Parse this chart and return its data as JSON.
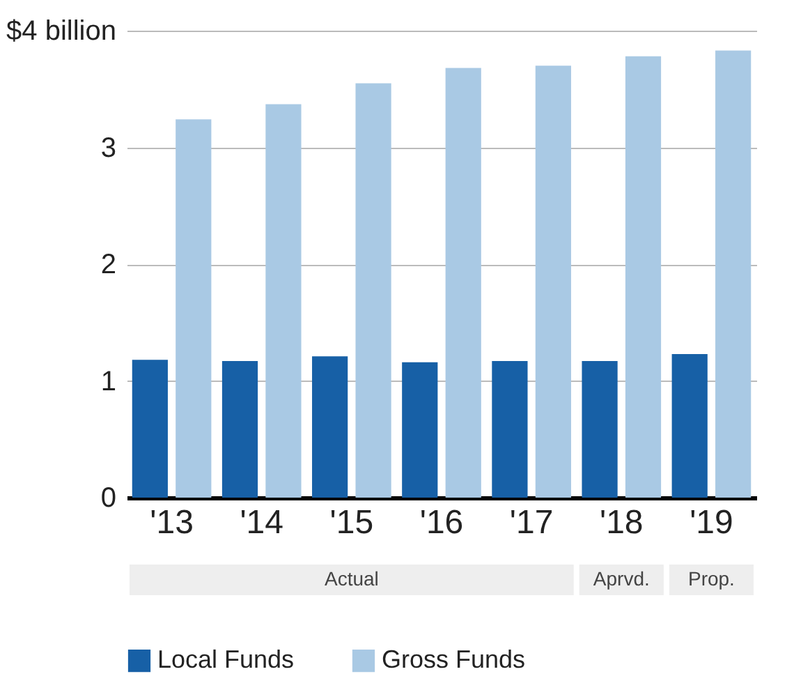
{
  "chart_data": {
    "type": "bar",
    "categories": [
      "'13",
      "'14",
      "'15",
      "'16",
      "'17",
      "'18",
      "'19"
    ],
    "series": [
      {
        "name": "Local Funds",
        "color": "#1760a6",
        "values": [
          1.18,
          1.17,
          1.21,
          1.16,
          1.17,
          1.17,
          1.23
        ]
      },
      {
        "name": "Gross Funds",
        "color": "#a9c9e4",
        "values": [
          3.24,
          3.37,
          3.55,
          3.68,
          3.7,
          3.78,
          3.83
        ]
      }
    ],
    "ylim": [
      0,
      4
    ],
    "yticks": [
      0,
      1,
      2,
      3,
      {
        "value": 4,
        "label": "$4 billion"
      }
    ],
    "grid": "y",
    "legend": "bottom",
    "annotations": [
      "Actual",
      "Aprvd.",
      "Prop."
    ]
  }
}
